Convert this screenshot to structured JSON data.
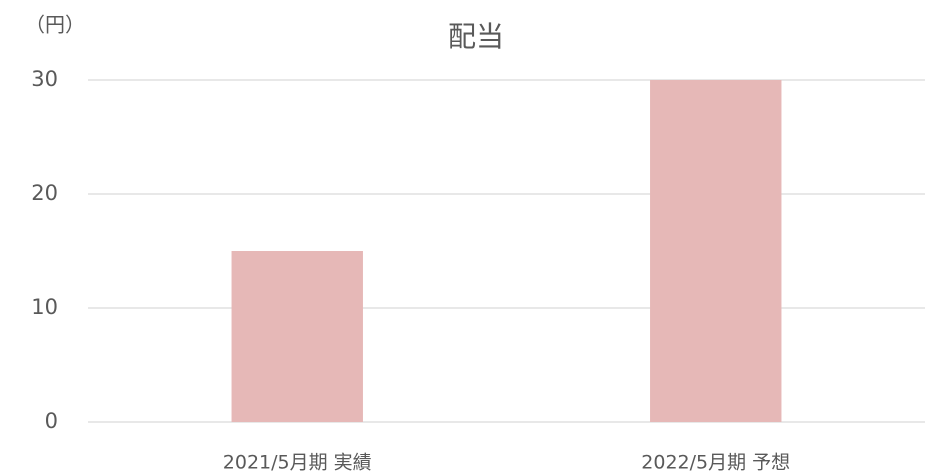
{
  "chart_data": {
    "type": "bar",
    "title": "配当",
    "y_axis_label": "（円）",
    "categories": [
      "2021/5月期 実績",
      "2022/5月期 予想"
    ],
    "values": [
      15,
      30
    ],
    "color": "#e6b8b7",
    "ylim": [
      0,
      30
    ],
    "yticks": [
      0,
      10,
      20,
      30
    ],
    "grid": true
  }
}
